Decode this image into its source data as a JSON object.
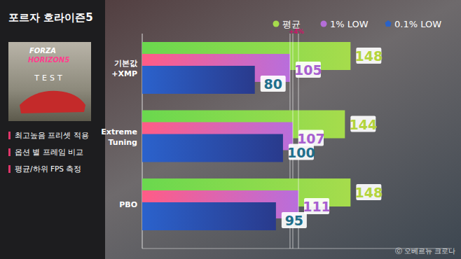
{
  "chart_data": {
    "type": "bar",
    "orientation": "horizontal",
    "title": "포르자 호라이즌5",
    "notes": [
      "최고높음 프리셋 적용",
      "옵션 별 프레임 비교",
      "평균/하위 FPS 측정"
    ],
    "image_text": [
      "FORZA",
      "HORIZON5",
      "TEST"
    ],
    "annotations": [
      "+4%"
    ],
    "source": "ⓒ 오베르뉴 크로나",
    "categories": [
      "기본값\n+XMP",
      "Extreme\nTuning",
      "PBO"
    ],
    "series": [
      {
        "name": "평균",
        "color": "#a6dc4c",
        "values": [
          148,
          144,
          148
        ]
      },
      {
        "name": "1% LOW",
        "color": "#b46ed8",
        "values": [
          105,
          107,
          111
        ]
      },
      {
        "name": "0.1% LOW",
        "color": "#2a62c8",
        "values": [
          80,
          100,
          95
        ]
      }
    ],
    "xlim": [
      0,
      220
    ],
    "tick_labels": false,
    "grid": false,
    "legend": "top",
    "data_labels": true
  }
}
